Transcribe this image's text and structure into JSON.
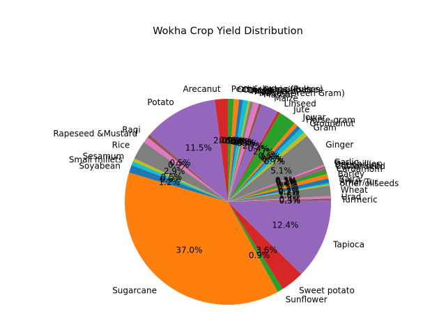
{
  "chart_data": {
    "type": "pie",
    "title": "Wokha Crop Yield Distribution",
    "start_angle_deg": 90,
    "direction": "counterclockwise",
    "legend": "none",
    "slices": [
      {
        "label": "Arecanut",
        "value": 2.0,
        "color": "#d62728"
      },
      {
        "label": "Potato",
        "value": 11.5,
        "color": "#9467bd"
      },
      {
        "label": "Ragi",
        "value": 0.5,
        "color": "#8c564b"
      },
      {
        "label": "Rapeseed &Mustard",
        "value": 0.9,
        "color": "#e377c2"
      },
      {
        "label": "Rice",
        "value": 2.9,
        "color": "#7f7f7f"
      },
      {
        "label": "Sesamum",
        "value": 0.5,
        "color": "#bcbd22"
      },
      {
        "label": "Small millets",
        "value": 0.6,
        "color": "#17becf"
      },
      {
        "label": "Soyabean",
        "value": 1.2,
        "color": "#1f77b4"
      },
      {
        "label": "Sugarcane",
        "value": 37.0,
        "color": "#ff7f0e"
      },
      {
        "label": "Sunflower",
        "value": 0.9,
        "color": "#2ca02c"
      },
      {
        "label": "Sweet potato",
        "value": 3.6,
        "color": "#d62728"
      },
      {
        "label": "Tapioca",
        "value": 12.4,
        "color": "#9467bd"
      },
      {
        "label": "Turmeric",
        "value": 0.3,
        "color": "#8c564b"
      },
      {
        "label": "Urad",
        "value": 0.4,
        "color": "#e377c2"
      },
      {
        "label": "Wheat",
        "value": 1.6,
        "color": "#7f7f7f"
      },
      {
        "label": "other oilseeds",
        "value": 0.2,
        "color": "#bcbd22"
      },
      {
        "label": "Arhar/Tur",
        "value": 0.2,
        "color": "#17becf"
      },
      {
        "label": "Bajra",
        "value": 0.7,
        "color": "#1f77b4"
      },
      {
        "label": "Barley",
        "value": 0.7,
        "color": "#ff7f0e"
      },
      {
        "label": "Cardamom",
        "value": 0.7,
        "color": "#2ca02c"
      },
      {
        "label": "Castor seed",
        "value": 0.1,
        "color": "#d62728"
      },
      {
        "label": "Cotton(lint)",
        "value": 0.2,
        "color": "#9467bd"
      },
      {
        "label": "Dry chillies",
        "value": 0.2,
        "color": "#8c564b"
      },
      {
        "label": "Garlic",
        "value": 0.3,
        "color": "#e377c2"
      },
      {
        "label": "Ginger",
        "value": 5.1,
        "color": "#7f7f7f"
      },
      {
        "label": "Gram",
        "value": 0.7,
        "color": "#bcbd22"
      },
      {
        "label": "Groundnut",
        "value": 0.8,
        "color": "#17becf"
      },
      {
        "label": "Horse-gram",
        "value": 0.6,
        "color": "#1f77b4"
      },
      {
        "label": "Jowar",
        "value": 0.6,
        "color": "#ff7f0e"
      },
      {
        "label": "Jute",
        "value": 2.7,
        "color": "#2ca02c"
      },
      {
        "label": "Linseed",
        "value": 0.4,
        "color": "#d62728"
      },
      {
        "label": "Maize",
        "value": 2.7,
        "color": "#9467bd"
      },
      {
        "label": "Masoor",
        "value": 0.4,
        "color": "#8c564b"
      },
      {
        "label": "Moong(Green Gram)",
        "value": 0.9,
        "color": "#e377c2"
      },
      {
        "label": "Moth",
        "value": 0.5,
        "color": "#7f7f7f"
      },
      {
        "label": "Niger seed",
        "value": 0.3,
        "color": "#bcbd22"
      },
      {
        "label": "Onion",
        "value": 0.8,
        "color": "#17becf"
      },
      {
        "label": "Other Kharif pulses",
        "value": 0.6,
        "color": "#1f77b4"
      },
      {
        "label": "Other Rabi pulses",
        "value": 0.8,
        "color": "#ff7f0e"
      },
      {
        "label": "Peas & beans (Pulses)",
        "value": 0.9,
        "color": "#2ca02c"
      }
    ]
  }
}
